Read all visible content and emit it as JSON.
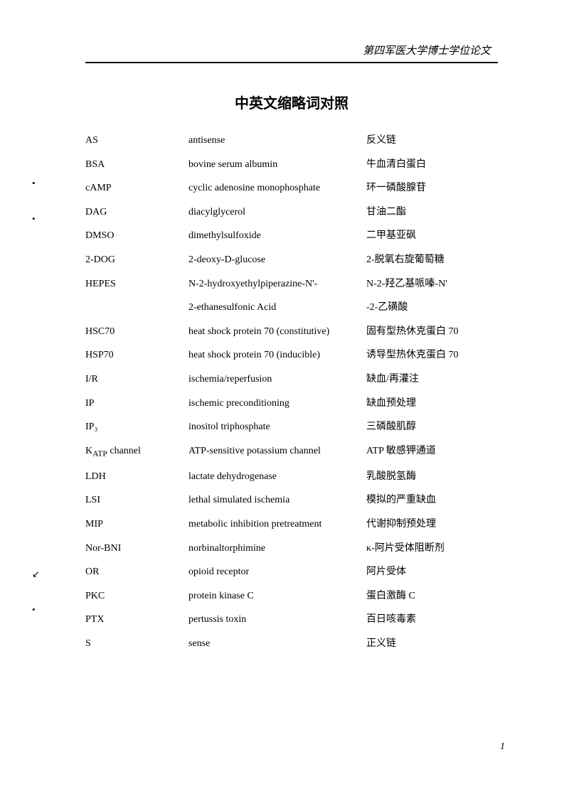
{
  "header_text": "第四军医大学博士学位论文",
  "title_text": "中英文缩略词对照",
  "page_number": "1",
  "rows": [
    {
      "abbr": "AS",
      "english": "antisense",
      "chinese": "反义链"
    },
    {
      "abbr": "BSA",
      "english": "bovine serum albumin",
      "chinese": "牛血清白蛋白"
    },
    {
      "abbr": "cAMP",
      "english": "cyclic adenosine monophosphate",
      "chinese": "环一磷酸腺苷"
    },
    {
      "abbr": "DAG",
      "english": "diacylglycerol",
      "chinese": "甘油二酯"
    },
    {
      "abbr": "DMSO",
      "english": "dimethylsulfoxide",
      "chinese": "二甲基亚砜"
    },
    {
      "abbr": "2-DOG",
      "english": "2-deoxy-D-glucose",
      "chinese": "2-脱氧右旋葡萄糖"
    },
    {
      "abbr": "HEPES",
      "english": "N-2-hydroxyethylpiperazine-N'-",
      "chinese": "N-2-羟乙基哌嗪-N'"
    },
    {
      "abbr": "",
      "english": "2-ethanesulfonic Acid",
      "chinese": "-2-乙磺酸"
    },
    {
      "abbr": "HSC70",
      "english": "heat shock protein 70 (constitutive)",
      "chinese": "固有型热休克蛋白 70"
    },
    {
      "abbr": "HSP70",
      "english": "heat shock protein 70 (inducible)",
      "chinese": "诱导型热休克蛋白 70"
    },
    {
      "abbr": "I/R",
      "english": "ischemia/reperfusion",
      "chinese": "缺血/再灌注"
    },
    {
      "abbr": "IP",
      "english": "ischemic preconditioning",
      "chinese": "缺血预处理"
    },
    {
      "abbr": "IP₃",
      "english": "inositol triphosphate",
      "chinese": "三磷酸肌醇"
    },
    {
      "abbr_html": "K<sub>ATP</sub> channel",
      "english": "ATP-sensitive potassium channel",
      "chinese": "ATP 敏感钾通道"
    },
    {
      "abbr": "LDH",
      "english": "lactate dehydrogenase",
      "chinese": "乳酸脱氢酶"
    },
    {
      "abbr": "LSI",
      "english": "lethal simulated ischemia",
      "chinese": "模拟的严重缺血"
    },
    {
      "abbr": "MIP",
      "english": "metabolic inhibition pretreatment",
      "chinese": "代谢抑制预处理"
    },
    {
      "abbr": "Nor-BNI",
      "english": "norbinaltorphimine",
      "chinese": "κ-阿片受体阻断剂"
    },
    {
      "abbr": "OR",
      "english": "opioid receptor",
      "chinese": "阿片受体"
    },
    {
      "abbr": "PKC",
      "english": "protein kinase C",
      "chinese": "蛋白激酶 C"
    },
    {
      "abbr": "PTX",
      "english": "pertussis toxin",
      "chinese": "百日咳毒素"
    },
    {
      "abbr": "S",
      "english": "sense",
      "chinese": "正义链"
    }
  ]
}
